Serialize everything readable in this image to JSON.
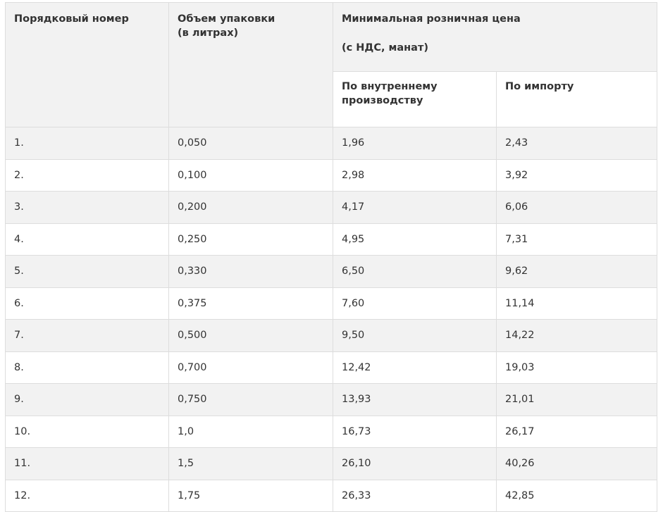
{
  "headers": {
    "number": "Порядковый номер",
    "volume_line1": "Объем упаковки",
    "volume_line2": "(в литрах)",
    "price_title": "Минимальная розничная цена",
    "price_sub": "(с НДС, манат)",
    "domestic_line1": "По внутреннему",
    "domestic_line2": "производству",
    "import": "По импорту"
  },
  "rows": [
    [
      "1.",
      "0,050",
      "1,96",
      "2,43"
    ],
    [
      "2.",
      "0,100",
      "2,98",
      "3,92"
    ],
    [
      "3.",
      "0,200",
      "4,17",
      "6,06"
    ],
    [
      "4.",
      "0,250",
      "4,95",
      "7,31"
    ],
    [
      "5.",
      "0,330",
      "6,50",
      "9,62"
    ],
    [
      "6.",
      "0,375",
      "7,60",
      "11,14"
    ],
    [
      "7.",
      "0,500",
      "9,50",
      "14,22"
    ],
    [
      "8.",
      "0,700",
      "12,42",
      "19,03"
    ],
    [
      "9.",
      "0,750",
      "13,93",
      "21,01"
    ],
    [
      "10.",
      "1,0",
      "16,73",
      "26,17"
    ],
    [
      "11.",
      "1,5",
      "26,10",
      "40,26"
    ],
    [
      "12.",
      "1,75",
      "26,33",
      "42,85"
    ]
  ]
}
